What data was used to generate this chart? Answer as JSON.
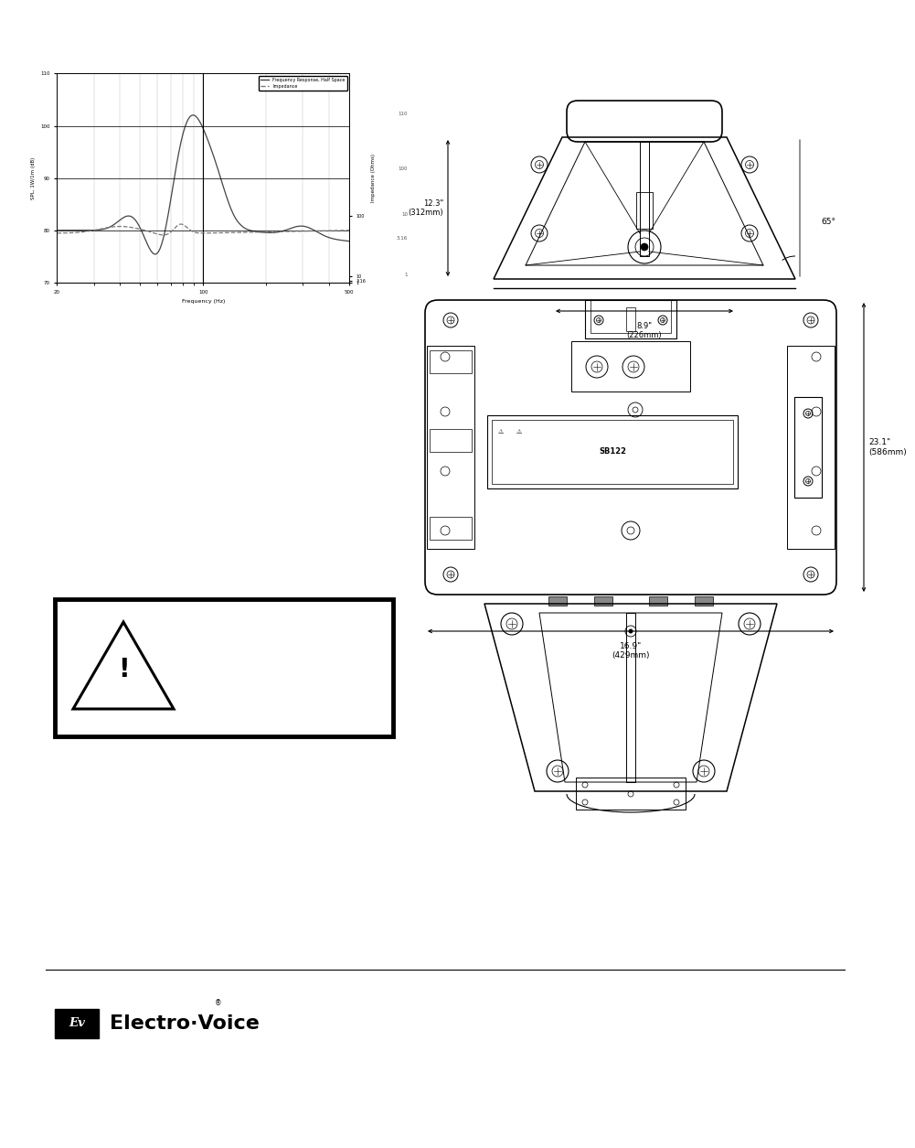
{
  "page_bg": "#ffffff",
  "freq_response": {
    "xlabel": "Frequency (Hz)",
    "ylabel_left": "SPL, 1W/1m (dB)",
    "ylabel_right": "Impedance (Ohms)",
    "legend_fr": "Frequency Response, Half Space",
    "legend_imp": "Impedance",
    "spl_color": "#444444",
    "imp_color": "#777777"
  },
  "dim_top_height": "12.3\"\n(312mm)",
  "dim_top_width": "8.9\"\n(226mm)",
  "dim_top_angle": "65°",
  "dim_front_height": "23.1\"\n(586mm)",
  "dim_front_width": "16.9\"\n(429mm)",
  "logo_ev_text": "Ev",
  "logo_brand": "Electro·Voice",
  "logo_reg": "®"
}
